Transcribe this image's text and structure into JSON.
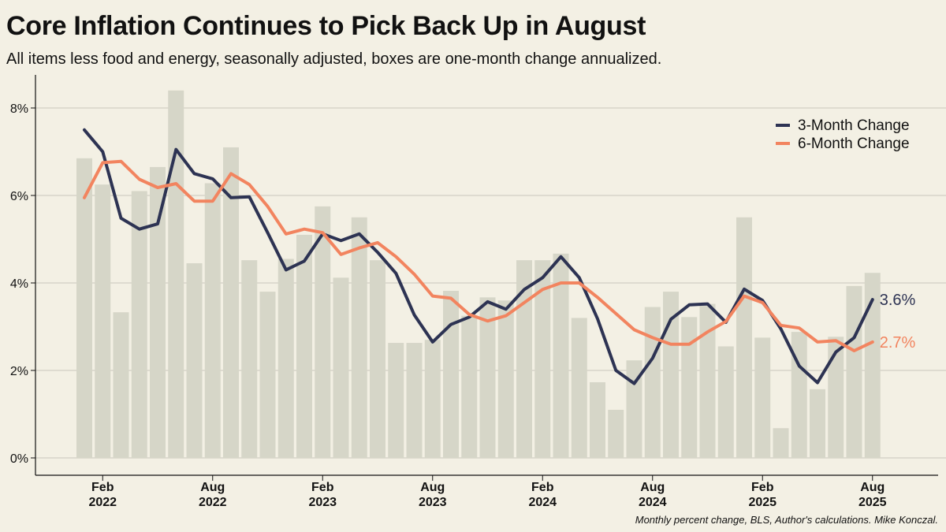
{
  "title": "Core Inflation Continues to Pick Back Up in August",
  "subtitle": "All items less food and energy, seasonally adjusted, boxes are one-month change annualized.",
  "credit": "Monthly percent change, BLS, Author's calculations. Mike Konczal.",
  "colors": {
    "background": "#f3f0e4",
    "bars": "#d6d6c8",
    "three_month": "#2d3353",
    "six_month": "#f2845f",
    "grid": "#c8c6bb",
    "axis": "#111111"
  },
  "chart_data": {
    "type": "bar+line",
    "x": [
      "2022-01",
      "2022-02",
      "2022-03",
      "2022-04",
      "2022-05",
      "2022-06",
      "2022-07",
      "2022-08",
      "2022-09",
      "2022-10",
      "2022-11",
      "2022-12",
      "2023-01",
      "2023-02",
      "2023-03",
      "2023-04",
      "2023-05",
      "2023-06",
      "2023-07",
      "2023-08",
      "2023-09",
      "2023-10",
      "2023-11",
      "2023-12",
      "2024-01",
      "2024-02",
      "2024-03",
      "2024-04",
      "2024-05",
      "2024-06",
      "2024-07",
      "2024-08",
      "2024-09",
      "2024-10",
      "2024-11",
      "2024-12",
      "2025-01",
      "2025-02",
      "2025-03",
      "2025-04",
      "2025-05",
      "2025-06",
      "2025-07",
      "2025-08"
    ],
    "ylim": [
      0,
      9
    ],
    "yticks": [
      0,
      2,
      4,
      6,
      8
    ],
    "ytick_labels": [
      "0%",
      "2%",
      "4%",
      "6%",
      "8%"
    ],
    "xticks": [
      {
        "index": 1,
        "month": "Feb",
        "year": "2022"
      },
      {
        "index": 7,
        "month": "Aug",
        "year": "2022"
      },
      {
        "index": 13,
        "month": "Feb",
        "year": "2023"
      },
      {
        "index": 19,
        "month": "Aug",
        "year": "2023"
      },
      {
        "index": 25,
        "month": "Feb",
        "year": "2024"
      },
      {
        "index": 31,
        "month": "Aug",
        "year": "2024"
      },
      {
        "index": 37,
        "month": "Feb",
        "year": "2025"
      },
      {
        "index": 43,
        "month": "Aug",
        "year": "2025"
      }
    ],
    "bars": {
      "name": "One-Month Change Annualized",
      "values": [
        6.85,
        6.25,
        3.33,
        6.1,
        6.65,
        8.4,
        4.45,
        6.28,
        7.1,
        4.52,
        3.8,
        4.55,
        5.1,
        5.75,
        4.12,
        5.5,
        4.52,
        2.63,
        2.63,
        2.7,
        3.82,
        3.25,
        3.67,
        3.6,
        4.52,
        4.52,
        4.67,
        3.2,
        1.73,
        1.1,
        2.23,
        3.45,
        3.8,
        3.22,
        3.52,
        2.55,
        5.5,
        2.75,
        0.68,
        2.88,
        1.57,
        2.77,
        3.93,
        4.23
      ]
    },
    "series": [
      {
        "name": "3-Month Change",
        "key": "three_month",
        "values": [
          7.5,
          7.0,
          5.48,
          5.23,
          5.35,
          7.05,
          6.5,
          6.38,
          5.95,
          5.97,
          5.15,
          4.3,
          4.5,
          5.12,
          4.97,
          5.12,
          4.7,
          4.22,
          3.27,
          2.65,
          3.05,
          3.22,
          3.57,
          3.4,
          3.85,
          4.12,
          4.6,
          4.12,
          3.18,
          2.0,
          1.7,
          2.28,
          3.17,
          3.5,
          3.52,
          3.1,
          3.86,
          3.6,
          2.95,
          2.1,
          1.72,
          2.42,
          2.75,
          3.62
        ]
      },
      {
        "name": "6-Month Change",
        "key": "six_month",
        "values": [
          5.95,
          6.75,
          6.78,
          6.37,
          6.18,
          6.27,
          5.87,
          5.87,
          6.5,
          6.25,
          5.75,
          5.12,
          5.23,
          5.15,
          4.65,
          4.8,
          4.92,
          4.6,
          4.2,
          3.7,
          3.65,
          3.28,
          3.13,
          3.25,
          3.55,
          3.85,
          4.0,
          4.0,
          3.67,
          3.3,
          2.93,
          2.75,
          2.6,
          2.6,
          2.88,
          3.12,
          3.7,
          3.55,
          3.03,
          2.97,
          2.65,
          2.68,
          2.45,
          2.65
        ]
      }
    ],
    "end_labels": {
      "three_month": "3.6%",
      "six_month": "2.7%"
    },
    "legend": [
      "3-Month Change",
      "6-Month Change"
    ],
    "legend_position": "top-right",
    "grid": true
  }
}
